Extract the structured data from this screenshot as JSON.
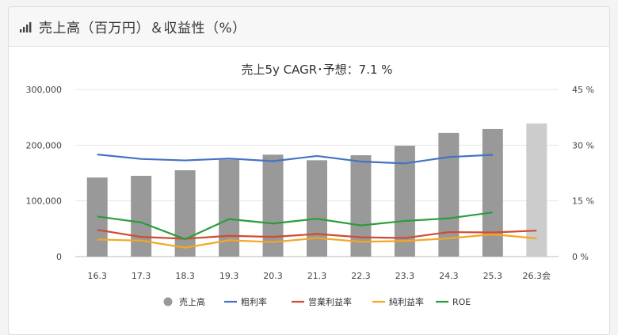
{
  "header": {
    "title": "売上高（百万円）＆収益性（%）",
    "icon": "bar-chart-icon"
  },
  "chart_data": {
    "type": "bar",
    "title": "売上5y CAGR･予想：7.1 %",
    "categories": [
      "16.3",
      "17.3",
      "18.3",
      "19.3",
      "20.3",
      "21.3",
      "22.3",
      "23.3",
      "24.3",
      "25.3",
      "26.3会"
    ],
    "y_left": {
      "ylim": [
        0,
        300000
      ],
      "ticks": [
        "0",
        "100,000",
        "200,000",
        "300,000"
      ]
    },
    "y_right": {
      "ylim": [
        0,
        45
      ],
      "ticks": [
        "0 %",
        "15 %",
        "30 %",
        "45 %"
      ]
    },
    "grid": true,
    "legend_position": "bottom",
    "series": [
      {
        "name": "売上高",
        "kind": "bar",
        "axis": "left",
        "color": "#999999",
        "forecast_color": "#cccccc",
        "values": [
          142000,
          145000,
          155000,
          174000,
          183000,
          173000,
          182000,
          199000,
          222000,
          229000,
          239000
        ]
      },
      {
        "name": "粗利率",
        "kind": "line",
        "axis": "right",
        "color": "#4472c4",
        "values": [
          27.5,
          26.3,
          25.9,
          26.4,
          25.7,
          27.1,
          25.6,
          25.1,
          26.8,
          27.4,
          null
        ]
      },
      {
        "name": "営業利益率",
        "kind": "line",
        "axis": "right",
        "color": "#d14b2f",
        "values": [
          7.2,
          5.3,
          4.8,
          5.6,
          5.3,
          6.1,
          5.2,
          5.0,
          6.6,
          6.5,
          7.0
        ]
      },
      {
        "name": "純利益率",
        "kind": "line",
        "axis": "right",
        "color": "#f5a623",
        "values": [
          4.6,
          4.3,
          2.4,
          4.4,
          3.9,
          5.0,
          4.0,
          4.2,
          4.9,
          6.0,
          4.9
        ]
      },
      {
        "name": "ROE",
        "kind": "line",
        "axis": "right",
        "color": "#2a9d3a",
        "values": [
          10.8,
          9.2,
          4.7,
          10.1,
          8.9,
          10.2,
          8.4,
          9.6,
          10.3,
          11.9,
          null
        ]
      }
    ]
  }
}
